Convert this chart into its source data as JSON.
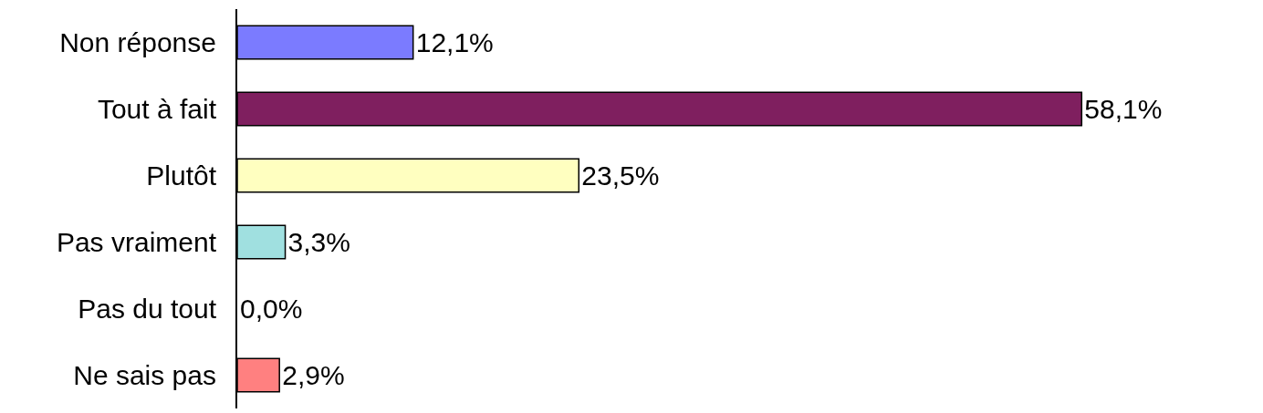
{
  "chart_data": {
    "type": "bar",
    "orientation": "horizontal",
    "categories": [
      "Non réponse",
      "Tout à fait",
      "Plutôt",
      "Pas vraiment",
      "Pas du tout",
      "Ne sais pas"
    ],
    "values": [
      12.1,
      58.1,
      23.5,
      3.3,
      0.0,
      2.9
    ],
    "value_labels": [
      "12,1%",
      "58,1%",
      "23,5%",
      "3,3%",
      "0,0%",
      "2,9%"
    ],
    "colors": [
      "#7b7bff",
      "#7f1f5f",
      "#ffffc0",
      "#a0e0e0",
      null,
      "#ff8080"
    ],
    "legend": false
  }
}
